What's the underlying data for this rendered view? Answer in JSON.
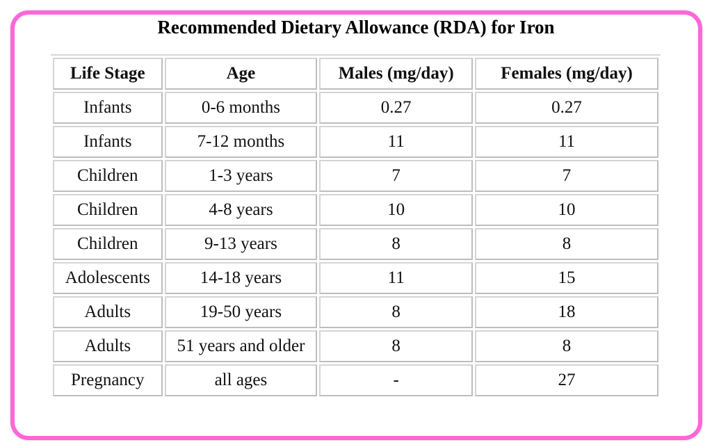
{
  "title": "Recommended Dietary Allowance (RDA) for Iron",
  "headers": {
    "life_stage": "Life Stage",
    "age": "Age",
    "males": "Males (mg/day)",
    "females": "Females (mg/day)"
  },
  "rows": [
    {
      "life_stage": "Infants",
      "age": "0-6 months",
      "males": "0.27",
      "females": "0.27"
    },
    {
      "life_stage": "Infants",
      "age": "7-12 months",
      "males": "11",
      "females": "11"
    },
    {
      "life_stage": "Children",
      "age": "1-3 years",
      "males": "7",
      "females": "7"
    },
    {
      "life_stage": "Children",
      "age": "4-8 years",
      "males": "10",
      "females": "10"
    },
    {
      "life_stage": "Children",
      "age": "9-13 years",
      "males": "8",
      "females": "8"
    },
    {
      "life_stage": "Adolescents",
      "age": "14-18 years",
      "males": "11",
      "females": "15"
    },
    {
      "life_stage": "Adults",
      "age": "19-50 years",
      "males": "8",
      "females": "18"
    },
    {
      "life_stage": "Adults",
      "age": "51 years and older",
      "males": "8",
      "females": "8"
    },
    {
      "life_stage": "Pregnancy",
      "age": "all ages",
      "males": "-",
      "females": "27"
    }
  ],
  "colors": {
    "frame_border": "#ff66d9",
    "cell_border": "#d4d4d4"
  }
}
